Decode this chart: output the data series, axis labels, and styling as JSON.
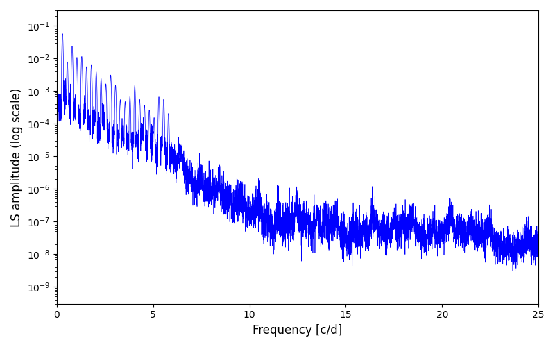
{
  "xlabel": "Frequency [c/d]",
  "ylabel": "LS amplitude (log scale)",
  "xlim": [
    0,
    25
  ],
  "ylim": [
    3e-10,
    0.3
  ],
  "line_color": "#0000FF",
  "line_width": 0.5,
  "background_color": "#ffffff",
  "figsize": [
    8.0,
    5.0
  ],
  "dpi": 100,
  "yscale": "log",
  "seed": 77,
  "n_points": 6000,
  "freq_max": 25.0
}
